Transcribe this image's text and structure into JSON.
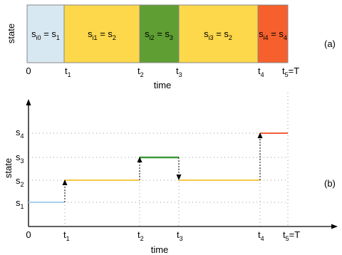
{
  "panel_a": {
    "ylabel": "state",
    "xlabel": "time",
    "panel_label": "(a)",
    "segments": [
      {
        "main": "s",
        "sub1": "i0",
        "mid": " = s",
        "sub2": "1",
        "color": "#d8e8f2"
      },
      {
        "main": "s",
        "sub1": "i1",
        "mid": " = s",
        "sub2": "2",
        "color": "#fcd84a"
      },
      {
        "main": "s",
        "sub1": "i2",
        "mid": " = s",
        "sub2": "3",
        "color": "#5e9e32"
      },
      {
        "main": "s",
        "sub1": "i3",
        "mid": " = s",
        "sub2": "2",
        "color": "#fcd84a"
      },
      {
        "main": "s",
        "sub1": "i4",
        "mid": " = s",
        "sub2": "4",
        "color": "#f5602c"
      }
    ],
    "ticks": [
      {
        "main": "0",
        "sub": "",
        "post": ""
      },
      {
        "main": "t",
        "sub": "1",
        "post": ""
      },
      {
        "main": "t",
        "sub": "2",
        "post": ""
      },
      {
        "main": "t",
        "sub": "3",
        "post": ""
      },
      {
        "main": "t",
        "sub": "4",
        "post": ""
      },
      {
        "main": "t",
        "sub": "5",
        "post": "=T"
      }
    ]
  },
  "panel_b": {
    "ylabel": "state",
    "xlabel": "time",
    "panel_label": "(b)",
    "state_labels": [
      {
        "main": "s",
        "sub": "1"
      },
      {
        "main": "s",
        "sub": "2"
      },
      {
        "main": "s",
        "sub": "3"
      },
      {
        "main": "s",
        "sub": "4"
      }
    ],
    "ticks": [
      {
        "main": "0",
        "sub": "",
        "post": ""
      },
      {
        "main": "t",
        "sub": "1",
        "post": ""
      },
      {
        "main": "t",
        "sub": "2",
        "post": ""
      },
      {
        "main": "t",
        "sub": "3",
        "post": ""
      },
      {
        "main": "t",
        "sub": "4",
        "post": ""
      },
      {
        "main": "t",
        "sub": "5",
        "post": "=T"
      }
    ],
    "path_levels": [
      1,
      2,
      3,
      2,
      4
    ],
    "colors": {
      "s1": "#a8d0ee",
      "s2": "#f6c842",
      "s3": "#3e9a3a",
      "s4": "#f2603a"
    }
  }
}
